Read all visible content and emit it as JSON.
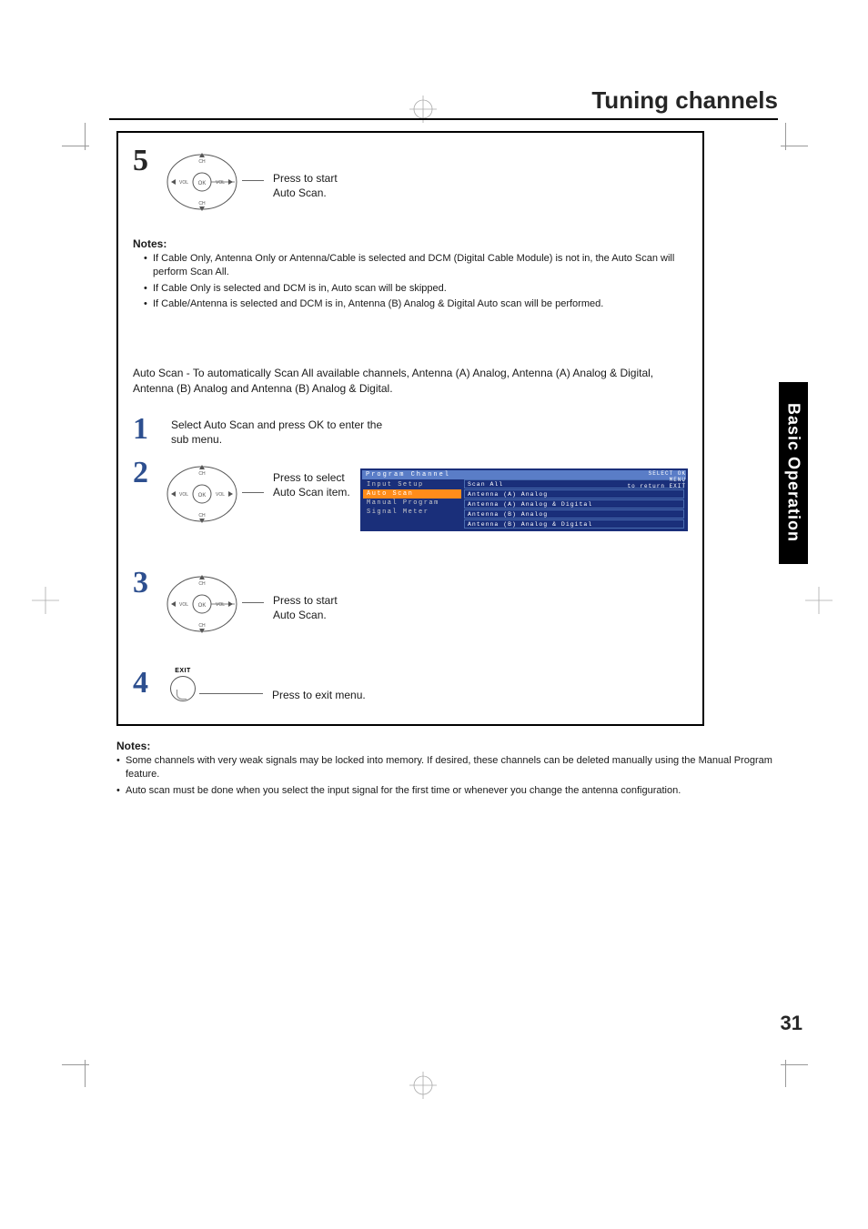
{
  "page_title": "Tuning channels",
  "side_tab": "Basic Operation",
  "page_number": "31",
  "step5": {
    "number": "5",
    "text": "Press to start\nAuto Scan.",
    "remote": {
      "up": "CH",
      "down": "CH",
      "left": "VOL",
      "right": "VOL",
      "center": "OK"
    }
  },
  "notes_a": {
    "title": "Notes:",
    "items": [
      "If Cable Only, Antenna Only or Antenna/Cable is selected and DCM (Digital Cable Module) is not in, the Auto Scan will perform Scan All.",
      "If Cable Only is selected and DCM is in, Auto scan will be skipped.",
      "If Cable/Antenna is selected and DCM is in, Antenna (B) Analog & Digital Auto scan will be performed."
    ]
  },
  "intro": "Auto Scan - To automatically Scan All available channels, Antenna (A) Analog, Antenna (A) Analog & Digital, Antenna (B) Analog and Antenna (B) Analog & Digital.",
  "step1": {
    "number": "1",
    "text": "Select Auto Scan and press OK to enter the sub menu."
  },
  "step2": {
    "number": "2",
    "text": "Press to select\nAuto Scan item.",
    "remote": {
      "up": "CH",
      "down": "CH",
      "left": "VOL",
      "right": "VOL",
      "center": "OK"
    }
  },
  "tv_menu": {
    "header_left": "Program Channel",
    "left_items": [
      {
        "label": "Input Setup",
        "active": false
      },
      {
        "label": "Auto Scan",
        "active": true
      },
      {
        "label": "Manual Program",
        "active": false
      },
      {
        "label": "Signal Meter",
        "active": false
      }
    ],
    "right_items": [
      "Scan All",
      "Antenna (A) Analog",
      "Antenna (A) Analog & Digital",
      "Antenna (B) Analog",
      "Antenna (B) Analog & Digital"
    ],
    "corner_top": "SELECT    OK",
    "corner_bottom": "MENU\nto return    EXIT"
  },
  "step3": {
    "number": "3",
    "text": "Press to start\nAuto Scan.",
    "remote": {
      "up": "CH",
      "down": "CH",
      "left": "VOL",
      "right": "VOL",
      "center": "OK"
    }
  },
  "step4": {
    "number": "4",
    "text": "Press to exit menu.",
    "exit_label": "EXIT"
  },
  "notes_b": {
    "title": "Notes:",
    "items": [
      "Some channels with very weak signals may be locked into memory. If desired, these channels can be deleted manually using the Manual Program feature.",
      "Auto scan must be done when you select the input signal for the first time or whenever you change the antenna configuration."
    ]
  },
  "colors": {
    "menu_bg": "#1a2f7a",
    "menu_header": "#5a7dc7",
    "menu_active": "#ff8c1a",
    "step_blue": "#2d4f8f",
    "text": "#1a1a1a"
  }
}
